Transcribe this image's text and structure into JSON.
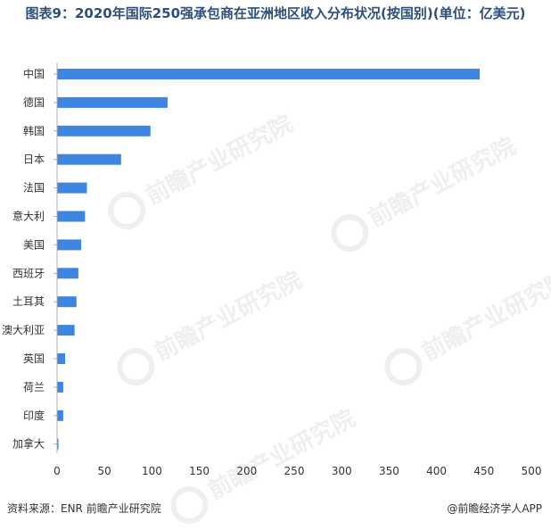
{
  "title": "图表9：2020年国际250强承包商在亚洲地区收入分布状况(按国别)(单位：亿美元)",
  "watermark_text": "前瞻产业研究院",
  "footer": {
    "source": "资料来源：ENR 前瞻产业研究院",
    "brand": "@前瞻经济学人APP"
  },
  "colors": {
    "bar": "#3d85e0",
    "axis": "#b0b0b0",
    "title": "#2d4f7c"
  },
  "chart_data": {
    "type": "bar",
    "orientation": "horizontal",
    "title": "图表9：2020年国际250强承包商在亚洲地区收入分布状况(按国别)(单位：亿美元)",
    "xlabel": "",
    "ylabel": "",
    "categories": [
      "中国",
      "德国",
      "韩国",
      "日本",
      "法国",
      "意大利",
      "美国",
      "西班牙",
      "土耳其",
      "澳大利亚",
      "英国",
      "荷兰",
      "印度",
      "加拿大"
    ],
    "values": [
      445,
      116,
      98,
      67,
      31,
      29,
      25,
      22,
      20,
      18,
      8,
      6,
      6,
      1
    ],
    "xlim": [
      0,
      500
    ],
    "xticks": [
      0,
      50,
      100,
      150,
      200,
      250,
      300,
      350,
      400,
      450,
      500
    ],
    "grid": false,
    "legend": "none"
  }
}
